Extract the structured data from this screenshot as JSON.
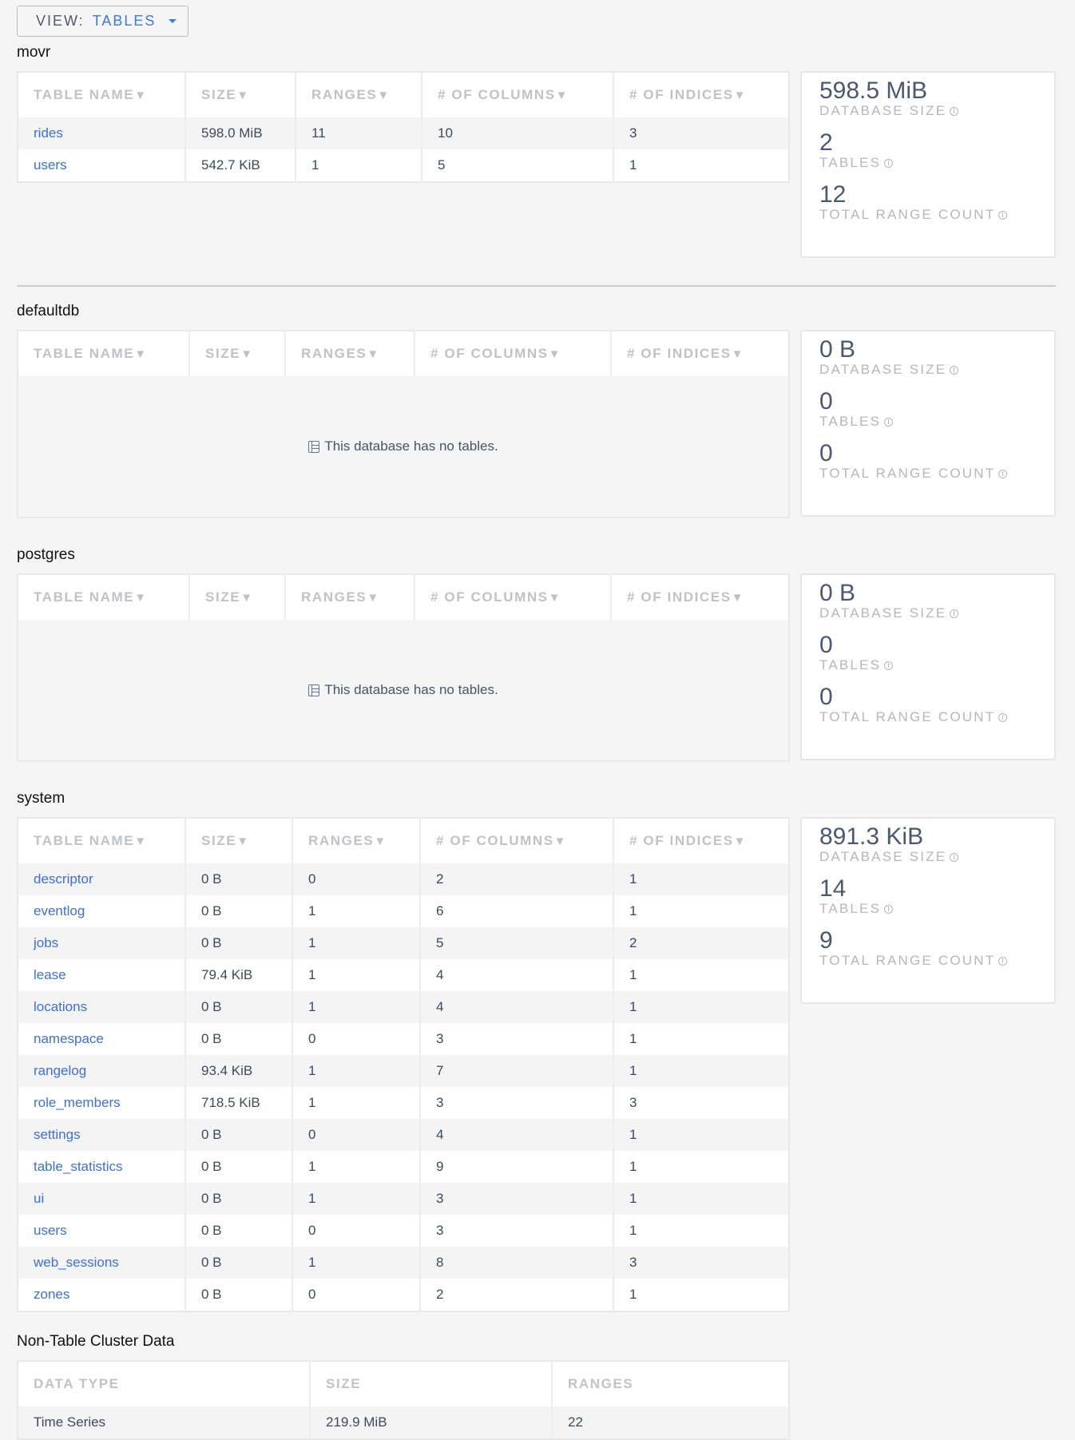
{
  "view_selector": {
    "label": "VIEW:",
    "value": "TABLES"
  },
  "empty_message": "This database has no tables.",
  "stat_labels": {
    "size": "DATABASE SIZE",
    "tables": "TABLES",
    "ranges": "TOTAL RANGE COUNT"
  },
  "table_headers": [
    "TABLE NAME",
    "SIZE",
    "RANGES",
    "# OF COLUMNS",
    "# OF INDICES"
  ],
  "sort_indicator": "▼",
  "databases": [
    {
      "name": "movr",
      "stats": {
        "size": "598.5 MiB",
        "tables": "2",
        "ranges": "12"
      },
      "rows": [
        [
          "rides",
          "598.0 MiB",
          "11",
          "10",
          "3"
        ],
        [
          "users",
          "542.7 KiB",
          "1",
          "5",
          "1"
        ]
      ]
    },
    {
      "name": "defaultdb",
      "stats": {
        "size": "0 B",
        "tables": "0",
        "ranges": "0"
      },
      "rows": []
    },
    {
      "name": "postgres",
      "stats": {
        "size": "0 B",
        "tables": "0",
        "ranges": "0"
      },
      "rows": []
    },
    {
      "name": "system",
      "stats": {
        "size": "891.3 KiB",
        "tables": "14",
        "ranges": "9"
      },
      "rows": [
        [
          "descriptor",
          "0 B",
          "0",
          "2",
          "1"
        ],
        [
          "eventlog",
          "0 B",
          "1",
          "6",
          "1"
        ],
        [
          "jobs",
          "0 B",
          "1",
          "5",
          "2"
        ],
        [
          "lease",
          "79.4 KiB",
          "1",
          "4",
          "1"
        ],
        [
          "locations",
          "0 B",
          "1",
          "4",
          "1"
        ],
        [
          "namespace",
          "0 B",
          "0",
          "3",
          "1"
        ],
        [
          "rangelog",
          "93.4 KiB",
          "1",
          "7",
          "1"
        ],
        [
          "role_members",
          "718.5 KiB",
          "1",
          "3",
          "3"
        ],
        [
          "settings",
          "0 B",
          "0",
          "4",
          "1"
        ],
        [
          "table_statistics",
          "0 B",
          "1",
          "9",
          "1"
        ],
        [
          "ui",
          "0 B",
          "1",
          "3",
          "1"
        ],
        [
          "users",
          "0 B",
          "0",
          "3",
          "1"
        ],
        [
          "web_sessions",
          "0 B",
          "1",
          "8",
          "3"
        ],
        [
          "zones",
          "0 B",
          "0",
          "2",
          "1"
        ]
      ]
    }
  ],
  "non_table": {
    "title": "Non-Table Cluster Data",
    "headers": [
      "DATA TYPE",
      "SIZE",
      "RANGES"
    ],
    "rows": [
      [
        "Time Series",
        "219.9 MiB",
        "22"
      ]
    ]
  }
}
